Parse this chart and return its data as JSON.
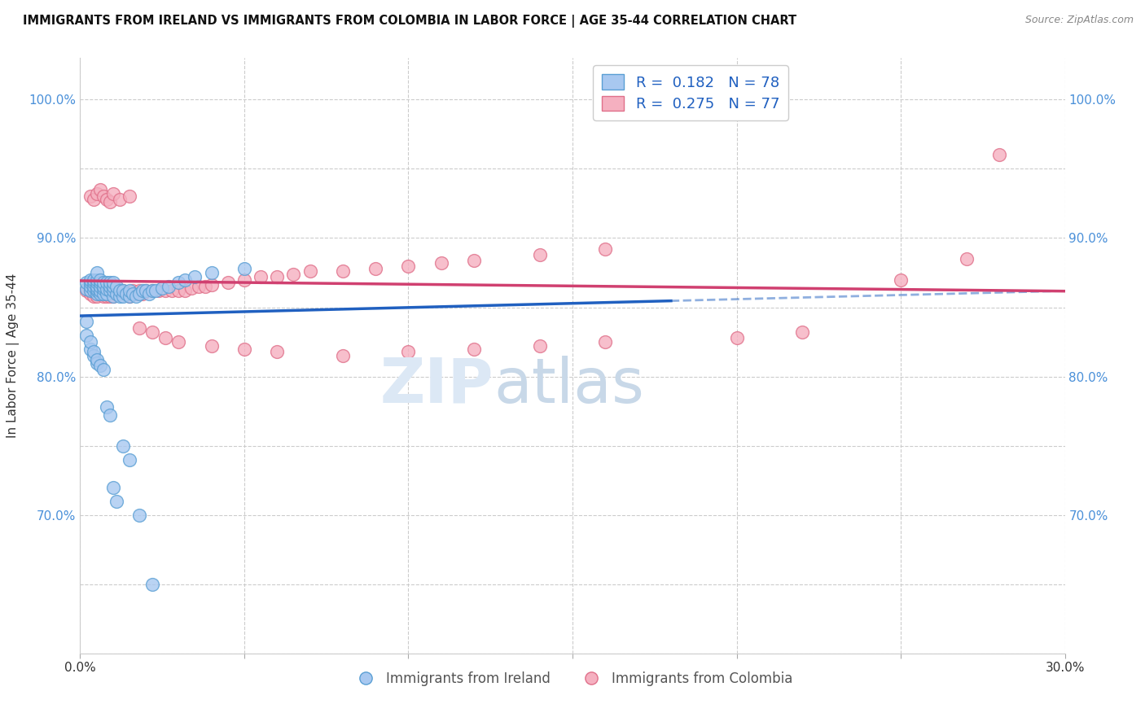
{
  "title": "IMMIGRANTS FROM IRELAND VS IMMIGRANTS FROM COLOMBIA IN LABOR FORCE | AGE 35-44 CORRELATION CHART",
  "source": "Source: ZipAtlas.com",
  "ylabel": "In Labor Force | Age 35-44",
  "xlim": [
    0.0,
    0.3
  ],
  "ylim": [
    0.6,
    1.03
  ],
  "xtick_positions": [
    0.0,
    0.05,
    0.1,
    0.15,
    0.2,
    0.25,
    0.3
  ],
  "xtick_labels": [
    "0.0%",
    "",
    "",
    "",
    "",
    "",
    "30.0%"
  ],
  "ytick_positions": [
    0.6,
    0.65,
    0.7,
    0.75,
    0.8,
    0.85,
    0.9,
    0.95,
    1.0
  ],
  "ytick_labels": [
    "",
    "",
    "70.0%",
    "",
    "80.0%",
    "",
    "90.0%",
    "",
    "100.0%"
  ],
  "ireland_color": "#a8c8f0",
  "ireland_edge_color": "#5a9fd4",
  "colombia_color": "#f5b0c0",
  "colombia_edge_color": "#e0708a",
  "ireland_line_color": "#2060c0",
  "colombia_line_color": "#d04070",
  "ireland_R": 0.182,
  "ireland_N": 78,
  "colombia_R": 0.275,
  "colombia_N": 77,
  "legend_color": "#2060c0",
  "watermark": "ZIPatlas",
  "ireland_x": [
    0.002,
    0.002,
    0.003,
    0.003,
    0.003,
    0.003,
    0.004,
    0.004,
    0.004,
    0.004,
    0.005,
    0.005,
    0.005,
    0.005,
    0.005,
    0.005,
    0.005,
    0.006,
    0.006,
    0.006,
    0.006,
    0.006,
    0.007,
    0.007,
    0.007,
    0.007,
    0.008,
    0.008,
    0.008,
    0.009,
    0.009,
    0.009,
    0.01,
    0.01,
    0.01,
    0.01,
    0.011,
    0.011,
    0.012,
    0.012,
    0.013,
    0.013,
    0.014,
    0.015,
    0.015,
    0.016,
    0.017,
    0.018,
    0.019,
    0.02,
    0.021,
    0.022,
    0.023,
    0.025,
    0.027,
    0.03,
    0.032,
    0.035,
    0.04,
    0.05,
    0.002,
    0.002,
    0.003,
    0.003,
    0.004,
    0.004,
    0.005,
    0.005,
    0.006,
    0.007,
    0.008,
    0.009,
    0.01,
    0.011,
    0.013,
    0.015,
    0.018,
    0.022
  ],
  "ireland_y": [
    0.863,
    0.868,
    0.862,
    0.865,
    0.868,
    0.87,
    0.862,
    0.865,
    0.868,
    0.87,
    0.86,
    0.862,
    0.863,
    0.865,
    0.868,
    0.87,
    0.875,
    0.86,
    0.862,
    0.865,
    0.868,
    0.87,
    0.86,
    0.863,
    0.865,
    0.868,
    0.86,
    0.863,
    0.868,
    0.862,
    0.865,
    0.868,
    0.858,
    0.862,
    0.865,
    0.868,
    0.86,
    0.865,
    0.858,
    0.862,
    0.858,
    0.862,
    0.86,
    0.858,
    0.862,
    0.86,
    0.858,
    0.86,
    0.862,
    0.862,
    0.86,
    0.862,
    0.862,
    0.864,
    0.865,
    0.868,
    0.87,
    0.872,
    0.875,
    0.878,
    0.83,
    0.84,
    0.82,
    0.825,
    0.815,
    0.818,
    0.81,
    0.812,
    0.808,
    0.805,
    0.778,
    0.772,
    0.72,
    0.71,
    0.75,
    0.74,
    0.7,
    0.65
  ],
  "colombia_x": [
    0.002,
    0.003,
    0.003,
    0.004,
    0.004,
    0.005,
    0.005,
    0.006,
    0.006,
    0.007,
    0.007,
    0.008,
    0.008,
    0.009,
    0.009,
    0.01,
    0.01,
    0.011,
    0.012,
    0.013,
    0.014,
    0.015,
    0.016,
    0.017,
    0.018,
    0.019,
    0.02,
    0.022,
    0.024,
    0.026,
    0.028,
    0.03,
    0.032,
    0.034,
    0.036,
    0.038,
    0.04,
    0.045,
    0.05,
    0.055,
    0.06,
    0.065,
    0.07,
    0.08,
    0.09,
    0.1,
    0.11,
    0.12,
    0.14,
    0.16,
    0.003,
    0.004,
    0.005,
    0.006,
    0.007,
    0.008,
    0.009,
    0.01,
    0.012,
    0.015,
    0.018,
    0.022,
    0.026,
    0.03,
    0.04,
    0.05,
    0.06,
    0.08,
    0.1,
    0.12,
    0.14,
    0.16,
    0.2,
    0.22,
    0.25,
    0.27,
    0.28
  ],
  "colombia_y": [
    0.862,
    0.86,
    0.862,
    0.858,
    0.862,
    0.858,
    0.862,
    0.86,
    0.862,
    0.858,
    0.862,
    0.858,
    0.86,
    0.858,
    0.862,
    0.858,
    0.862,
    0.86,
    0.86,
    0.862,
    0.86,
    0.858,
    0.862,
    0.86,
    0.862,
    0.86,
    0.862,
    0.862,
    0.862,
    0.862,
    0.862,
    0.862,
    0.862,
    0.864,
    0.865,
    0.865,
    0.866,
    0.868,
    0.87,
    0.872,
    0.872,
    0.874,
    0.876,
    0.876,
    0.878,
    0.88,
    0.882,
    0.884,
    0.888,
    0.892,
    0.93,
    0.928,
    0.932,
    0.935,
    0.93,
    0.928,
    0.926,
    0.932,
    0.928,
    0.93,
    0.835,
    0.832,
    0.828,
    0.825,
    0.822,
    0.82,
    0.818,
    0.815,
    0.818,
    0.82,
    0.822,
    0.825,
    0.828,
    0.832,
    0.87,
    0.885,
    0.96
  ]
}
